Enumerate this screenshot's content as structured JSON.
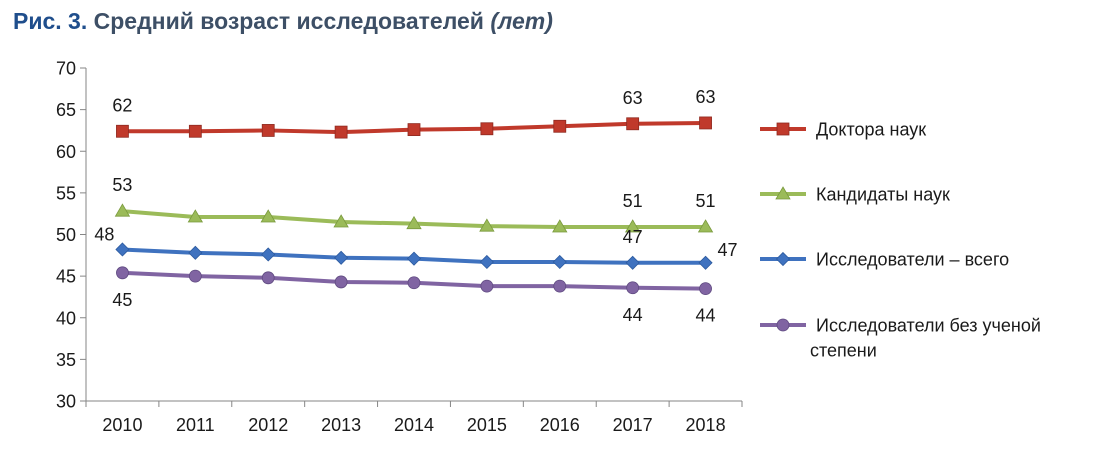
{
  "figure": {
    "number": "Рис. 3.",
    "title": "Средний возраст исследователей",
    "unit": "(лет)"
  },
  "chart_data": {
    "type": "line",
    "x": [
      "2010",
      "2011",
      "2012",
      "2013",
      "2014",
      "2015",
      "2016",
      "2017",
      "2018"
    ],
    "ylim": [
      30,
      70
    ],
    "yticks": [
      30,
      35,
      40,
      45,
      50,
      55,
      60,
      65,
      70
    ],
    "grid": false,
    "legend_position": "right",
    "series": [
      {
        "name": "Доктора наук",
        "color": "#c0392b",
        "marker": "square",
        "values": [
          62.4,
          62.4,
          62.5,
          62.3,
          62.6,
          62.7,
          63.0,
          63.3,
          63.4
        ],
        "labels": [
          {
            "index": 0,
            "text": "62",
            "pos": "above"
          },
          {
            "index": 7,
            "text": "63",
            "pos": "above"
          },
          {
            "index": 8,
            "text": "63",
            "pos": "above"
          }
        ]
      },
      {
        "name": "Кандидаты наук",
        "color": "#9bbb59",
        "marker": "triangle",
        "values": [
          52.8,
          52.1,
          52.1,
          51.5,
          51.3,
          51.0,
          50.9,
          50.9,
          50.9
        ],
        "labels": [
          {
            "index": 0,
            "text": "53",
            "pos": "above"
          },
          {
            "index": 7,
            "text": "51",
            "pos": "above"
          },
          {
            "index": 8,
            "text": "51",
            "pos": "above"
          }
        ]
      },
      {
        "name": "Исследователи – всего",
        "color": "#3f72bf",
        "marker": "diamond",
        "values": [
          48.2,
          47.8,
          47.6,
          47.2,
          47.1,
          46.7,
          46.7,
          46.6,
          46.6
        ],
        "labels": [
          {
            "index": 0,
            "text": "48",
            "pos": "left"
          },
          {
            "index": 7,
            "text": "47",
            "pos": "above"
          },
          {
            "index": 8,
            "text": "47",
            "pos": "right"
          }
        ]
      },
      {
        "name": "Исследователи без ученой степени",
        "legend_lines": [
          "Исследователи без ученой",
          "степени"
        ],
        "color": "#8064a2",
        "marker": "circle",
        "values": [
          45.4,
          45.0,
          44.8,
          44.3,
          44.2,
          43.8,
          43.8,
          43.6,
          43.5
        ],
        "labels": [
          {
            "index": 0,
            "text": "45",
            "pos": "below"
          },
          {
            "index": 7,
            "text": "44",
            "pos": "below"
          },
          {
            "index": 8,
            "text": "44",
            "pos": "below"
          }
        ]
      }
    ]
  }
}
